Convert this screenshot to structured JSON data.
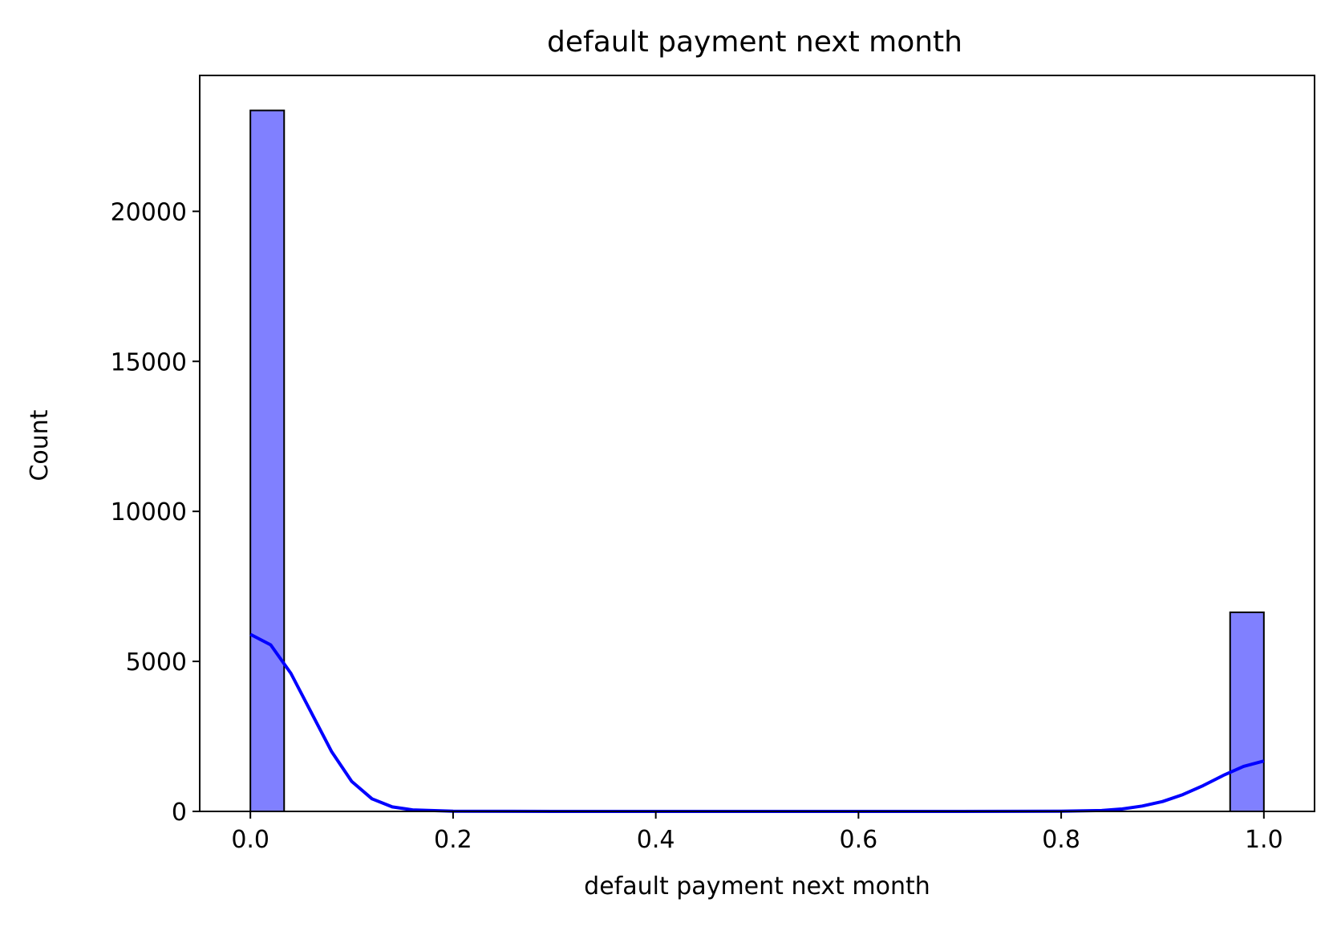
{
  "chart_data": {
    "type": "bar",
    "title": "default payment next month",
    "xlabel": "default payment next month",
    "ylabel": "Count",
    "xlim": [
      -0.05,
      1.05
    ],
    "ylim": [
      0,
      24530
    ],
    "xticks": [
      0.0,
      0.2,
      0.4,
      0.6,
      0.8,
      1.0
    ],
    "xtick_labels": [
      "0.0",
      "0.2",
      "0.4",
      "0.6",
      "0.8",
      "1.0"
    ],
    "yticks": [
      0,
      5000,
      10000,
      15000,
      20000
    ],
    "ytick_labels": [
      "0",
      "5000",
      "10000",
      "15000",
      "20000"
    ],
    "grid": false,
    "bins": [
      {
        "start": 0.0,
        "end": 0.0333,
        "count": 23364
      },
      {
        "start": 0.9667,
        "end": 1.0,
        "count": 6636
      }
    ],
    "kde": {
      "x": [
        0.0,
        0.02,
        0.04,
        0.06,
        0.08,
        0.1,
        0.12,
        0.14,
        0.16,
        0.2,
        0.3,
        0.5,
        0.7,
        0.8,
        0.84,
        0.86,
        0.88,
        0.9,
        0.92,
        0.94,
        0.96,
        0.98,
        1.0
      ],
      "y": [
        5900,
        5550,
        4600,
        3300,
        2000,
        1000,
        420,
        150,
        50,
        5,
        0,
        0,
        0,
        5,
        30,
        80,
        180,
        330,
        560,
        860,
        1200,
        1500,
        1680
      ]
    },
    "colors": {
      "bar_fill": "#8080ff",
      "bar_edge": "#000000",
      "kde_line": "#0000ff"
    }
  }
}
